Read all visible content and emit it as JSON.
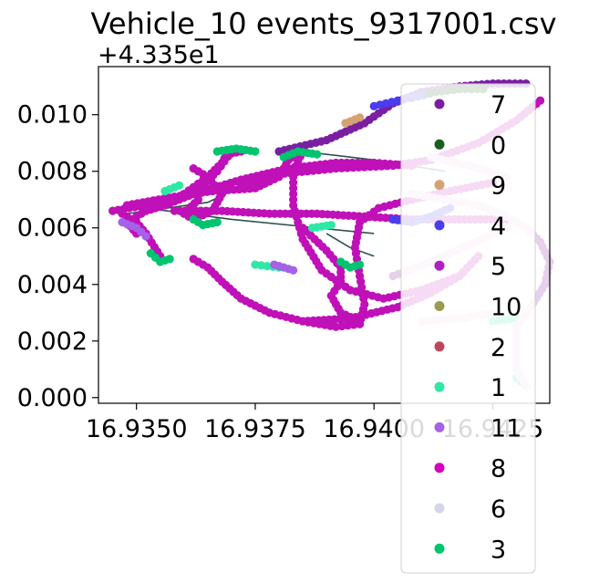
{
  "chart_data": {
    "type": "scatter",
    "title": "Vehicle_10 events_9317001.csv",
    "x_offset_label": "",
    "y_offset_label": "+4.335e1",
    "xlabel": "",
    "ylabel": "",
    "xlim": [
      16.9342,
      16.9437
    ],
    "ylim": [
      -0.0002,
      0.0117
    ],
    "x_ticks": [
      16.935,
      16.9375,
      16.94,
      16.9425
    ],
    "x_tick_labels": [
      "16.9350",
      "16.9375",
      "16.9400",
      "16.9425"
    ],
    "y_ticks": [
      0.0,
      0.002,
      0.004,
      0.006,
      0.008,
      0.01
    ],
    "y_tick_labels": [
      "0.000",
      "0.002",
      "0.004",
      "0.006",
      "0.008",
      "0.010"
    ],
    "grid": false,
    "legend_position": "right",
    "legend": [
      {
        "label": "7",
        "color": "#7a1fa2"
      },
      {
        "label": "0",
        "color": "#1b5e20"
      },
      {
        "label": "9",
        "color": "#d4a373"
      },
      {
        "label": "4",
        "color": "#4b3cf0"
      },
      {
        "label": "5",
        "color": "#b21fc4"
      },
      {
        "label": "10",
        "color": "#9a9a50"
      },
      {
        "label": "2",
        "color": "#c0465e"
      },
      {
        "label": "1",
        "color": "#2ee8a6"
      },
      {
        "label": "11",
        "color": "#a561e8"
      },
      {
        "label": "8",
        "color": "#d400c0"
      },
      {
        "label": "6",
        "color": "#d4d4ea"
      },
      {
        "label": "3",
        "color": "#00c46e"
      }
    ],
    "paths": [
      {
        "series": "8",
        "color": "#c010b8",
        "points": [
          [
            16.9345,
            0.0066
          ],
          [
            16.9352,
            0.0068
          ],
          [
            16.9362,
            0.0072
          ],
          [
            16.9372,
            0.0077
          ],
          [
            16.9382,
            0.0081
          ],
          [
            16.9392,
            0.0083
          ],
          [
            16.94,
            0.0083
          ],
          [
            16.9408,
            0.0082
          ]
        ]
      },
      {
        "series": "8",
        "color": "#c010b8",
        "points": [
          [
            16.9347,
            0.0065
          ],
          [
            16.935,
            0.0062
          ],
          [
            16.9352,
            0.0058
          ],
          [
            16.9355,
            0.005
          ]
        ]
      },
      {
        "series": "8",
        "color": "#c010b8",
        "points": [
          [
            16.9348,
            0.0068
          ],
          [
            16.9358,
            0.0071
          ],
          [
            16.9366,
            0.0073
          ],
          [
            16.9375,
            0.0074
          ],
          [
            16.938,
            0.0078
          ],
          [
            16.9382,
            0.0084
          ],
          [
            16.9385,
            0.0087
          ]
        ]
      },
      {
        "series": "8",
        "color": "#c010b8",
        "points": [
          [
            16.9385,
            0.0087
          ],
          [
            16.9383,
            0.008
          ],
          [
            16.9383,
            0.0068
          ],
          [
            16.9385,
            0.0056
          ],
          [
            16.9389,
            0.0045
          ],
          [
            16.9395,
            0.0038
          ],
          [
            16.9402,
            0.0035
          ],
          [
            16.941,
            0.0038
          ],
          [
            16.9418,
            0.0043
          ]
        ]
      },
      {
        "series": "8",
        "color": "#c010b8",
        "points": [
          [
            16.936,
            0.0072
          ],
          [
            16.9365,
            0.0078
          ],
          [
            16.9368,
            0.0083
          ],
          [
            16.9369,
            0.0086
          ],
          [
            16.9372,
            0.0087
          ]
        ]
      },
      {
        "series": "8",
        "color": "#c010b8",
        "points": [
          [
            16.937,
            0.0087
          ],
          [
            16.9367,
            0.008
          ],
          [
            16.9362,
            0.0072
          ],
          [
            16.9356,
            0.0068
          ],
          [
            16.9352,
            0.0066
          ],
          [
            16.9348,
            0.0062
          ],
          [
            16.935,
            0.0058
          ]
        ]
      },
      {
        "series": "8",
        "color": "#c010b8",
        "points": [
          [
            16.9362,
            0.0081
          ],
          [
            16.9365,
            0.0078
          ],
          [
            16.9368,
            0.0072
          ],
          [
            16.9366,
            0.0066
          ],
          [
            16.9362,
            0.0063
          ],
          [
            16.936,
            0.0065
          ],
          [
            16.9363,
            0.007
          ]
        ]
      },
      {
        "series": "8",
        "color": "#c010b8",
        "points": [
          [
            16.9362,
            0.0049
          ],
          [
            16.9365,
            0.0046
          ],
          [
            16.9368,
            0.0041
          ],
          [
            16.9372,
            0.0035
          ],
          [
            16.9378,
            0.003
          ],
          [
            16.9385,
            0.0027
          ],
          [
            16.9392,
            0.0025
          ],
          [
            16.9397,
            0.0026
          ]
        ]
      },
      {
        "series": "8",
        "color": "#c010b8",
        "points": [
          [
            16.9397,
            0.0026
          ],
          [
            16.9398,
            0.0033
          ],
          [
            16.9397,
            0.0043
          ],
          [
            16.9396,
            0.0053
          ],
          [
            16.9397,
            0.0062
          ],
          [
            16.9401,
            0.0067
          ],
          [
            16.9408,
            0.007
          ],
          [
            16.9416,
            0.0073
          ],
          [
            16.9425,
            0.0076
          ]
        ]
      },
      {
        "series": "8",
        "color": "#c010b8",
        "points": [
          [
            16.9358,
            0.0066
          ],
          [
            16.9368,
            0.0066
          ],
          [
            16.9378,
            0.0065
          ],
          [
            16.9388,
            0.0065
          ],
          [
            16.9398,
            0.0064
          ],
          [
            16.9408,
            0.0063
          ],
          [
            16.9418,
            0.0063
          ],
          [
            16.9428,
            0.0063
          ]
        ]
      },
      {
        "series": "8",
        "color": "#c010b8",
        "points": [
          [
            16.9385,
            0.0027
          ],
          [
            16.9395,
            0.0028
          ],
          [
            16.9405,
            0.0032
          ],
          [
            16.9412,
            0.0037
          ],
          [
            16.9418,
            0.0043
          ],
          [
            16.9422,
            0.005
          ]
        ]
      },
      {
        "series": "8",
        "color": "#c010b8",
        "points": [
          [
            16.9385,
            0.006
          ],
          [
            16.939,
            0.0052
          ],
          [
            16.9393,
            0.0046
          ],
          [
            16.9393,
            0.0041
          ],
          [
            16.9391,
            0.0036
          ],
          [
            16.9393,
            0.003
          ],
          [
            16.9397,
            0.0027
          ]
        ]
      },
      {
        "series": "8",
        "color": "#c010b8",
        "points": [
          [
            16.9372,
            0.0075
          ],
          [
            16.938,
            0.0079
          ],
          [
            16.9392,
            0.0081
          ],
          [
            16.9404,
            0.0082
          ],
          [
            16.9412,
            0.0084
          ],
          [
            16.9422,
            0.009
          ],
          [
            16.943,
            0.0098
          ],
          [
            16.9435,
            0.0105
          ]
        ]
      },
      {
        "series": "7",
        "color": "#7a1fa2",
        "points": [
          [
            16.938,
            0.0087
          ],
          [
            16.939,
            0.0091
          ],
          [
            16.9398,
            0.0097
          ],
          [
            16.9404,
            0.0104
          ],
          [
            16.941,
            0.0108
          ],
          [
            16.9418,
            0.011
          ],
          [
            16.9425,
            0.0111
          ],
          [
            16.9432,
            0.0111
          ]
        ]
      },
      {
        "series": "0",
        "color": "#1b5e20",
        "points": [
          [
            16.9408,
            0.0106
          ],
          [
            16.9413,
            0.0108
          ],
          [
            16.9418,
            0.0109
          ],
          [
            16.9423,
            0.0109
          ]
        ]
      },
      {
        "series": "4",
        "color": "#4b3cf0",
        "points": [
          [
            16.94,
            0.0103
          ],
          [
            16.9405,
            0.0105
          ],
          [
            16.941,
            0.0107
          ]
        ]
      },
      {
        "series": "4",
        "color": "#4b3cf0",
        "points": [
          [
            16.9404,
            0.0063
          ],
          [
            16.9408,
            0.0062
          ],
          [
            16.9412,
            0.0064
          ],
          [
            16.9416,
            0.0067
          ]
        ]
      },
      {
        "series": "9",
        "color": "#d4a373",
        "points": [
          [
            16.9394,
            0.0097
          ],
          [
            16.9397,
            0.0099
          ]
        ]
      },
      {
        "series": "3",
        "color": "#00c46e",
        "points": [
          [
            16.9353,
            0.0051
          ],
          [
            16.9355,
            0.0048
          ],
          [
            16.9357,
            0.0049
          ]
        ]
      },
      {
        "series": "3",
        "color": "#00c46e",
        "points": [
          [
            16.9381,
            0.0085
          ],
          [
            16.9384,
            0.0087
          ],
          [
            16.9388,
            0.0086
          ]
        ]
      },
      {
        "series": "3",
        "color": "#00c46e",
        "points": [
          [
            16.9367,
            0.0087
          ],
          [
            16.9371,
            0.0088
          ],
          [
            16.9375,
            0.0087
          ]
        ]
      },
      {
        "series": "3",
        "color": "#00c46e",
        "points": [
          [
            16.9393,
            0.0048
          ],
          [
            16.9395,
            0.0046
          ],
          [
            16.9397,
            0.0047
          ]
        ]
      },
      {
        "series": "3",
        "color": "#00c46e",
        "points": [
          [
            16.9362,
            0.0063
          ],
          [
            16.9364,
            0.0061
          ],
          [
            16.9367,
            0.0062
          ]
        ]
      },
      {
        "series": "1",
        "color": "#2ee8a6",
        "points": [
          [
            16.9356,
            0.0073
          ],
          [
            16.9359,
            0.0075
          ]
        ]
      },
      {
        "series": "1",
        "color": "#2ee8a6",
        "points": [
          [
            16.9387,
            0.006
          ],
          [
            16.9391,
            0.0061
          ]
        ]
      },
      {
        "series": "1",
        "color": "#2ee8a6",
        "points": [
          [
            16.9375,
            0.0047
          ],
          [
            16.938,
            0.0046
          ]
        ]
      },
      {
        "series": "1",
        "color": "#2ee8a6",
        "points": [
          [
            16.9425,
            0.0027
          ],
          [
            16.943,
            0.0028
          ]
        ]
      },
      {
        "series": "1",
        "color": "#2ee8a6",
        "points": [
          [
            16.943,
            0.0007
          ],
          [
            16.9432,
            0.0004
          ]
        ]
      },
      {
        "series": "11",
        "color": "#a561e8",
        "points": [
          [
            16.9347,
            0.0062
          ],
          [
            16.935,
            0.006
          ],
          [
            16.9352,
            0.0057
          ]
        ]
      },
      {
        "series": "11",
        "color": "#a561e8",
        "points": [
          [
            16.9379,
            0.0047
          ],
          [
            16.9383,
            0.0045
          ]
        ]
      },
      {
        "series": "6",
        "color": "#e6d0ec",
        "points": [
          [
            16.9408,
            0.0072
          ],
          [
            16.9415,
            0.007
          ],
          [
            16.9422,
            0.0068
          ],
          [
            16.9428,
            0.0064
          ],
          [
            16.9432,
            0.006
          ],
          [
            16.9435,
            0.0055
          ],
          [
            16.9437,
            0.0048
          ],
          [
            16.9436,
            0.004
          ],
          [
            16.9433,
            0.0032
          ],
          [
            16.943,
            0.0025
          ],
          [
            16.943,
            0.0018
          ],
          [
            16.943,
            0.001
          ],
          [
            16.9432,
            0.0004
          ]
        ]
      },
      {
        "series": "6",
        "color": "#e6d0ec",
        "points": [
          [
            16.9404,
            0.0043
          ],
          [
            16.9412,
            0.0048
          ],
          [
            16.942,
            0.0054
          ],
          [
            16.9428,
            0.006
          ]
        ]
      },
      {
        "series": "6",
        "color": "#e6d0ec",
        "points": [
          [
            16.9412,
            0.0085
          ],
          [
            16.942,
            0.0082
          ],
          [
            16.9428,
            0.0078
          ]
        ]
      },
      {
        "series": "6",
        "color": "#e6d0ec",
        "points": [
          [
            16.941,
            0.0027
          ],
          [
            16.9418,
            0.0028
          ],
          [
            16.9425,
            0.003
          ]
        ]
      }
    ],
    "connector_lines": [
      [
        [
          16.9348,
          0.0065
        ],
        [
          16.9365,
          0.0069
        ],
        [
          16.938,
          0.0081
        ],
        [
          16.9392,
          0.0083
        ]
      ],
      [
        [
          16.9352,
          0.0067
        ],
        [
          16.937,
          0.0063
        ],
        [
          16.9388,
          0.006
        ],
        [
          16.94,
          0.0058
        ]
      ],
      [
        [
          16.9385,
          0.0087
        ],
        [
          16.94,
          0.0084
        ],
        [
          16.9415,
          0.008
        ]
      ],
      [
        [
          16.939,
          0.0058
        ],
        [
          16.9395,
          0.0053
        ],
        [
          16.94,
          0.005
        ]
      ]
    ]
  }
}
